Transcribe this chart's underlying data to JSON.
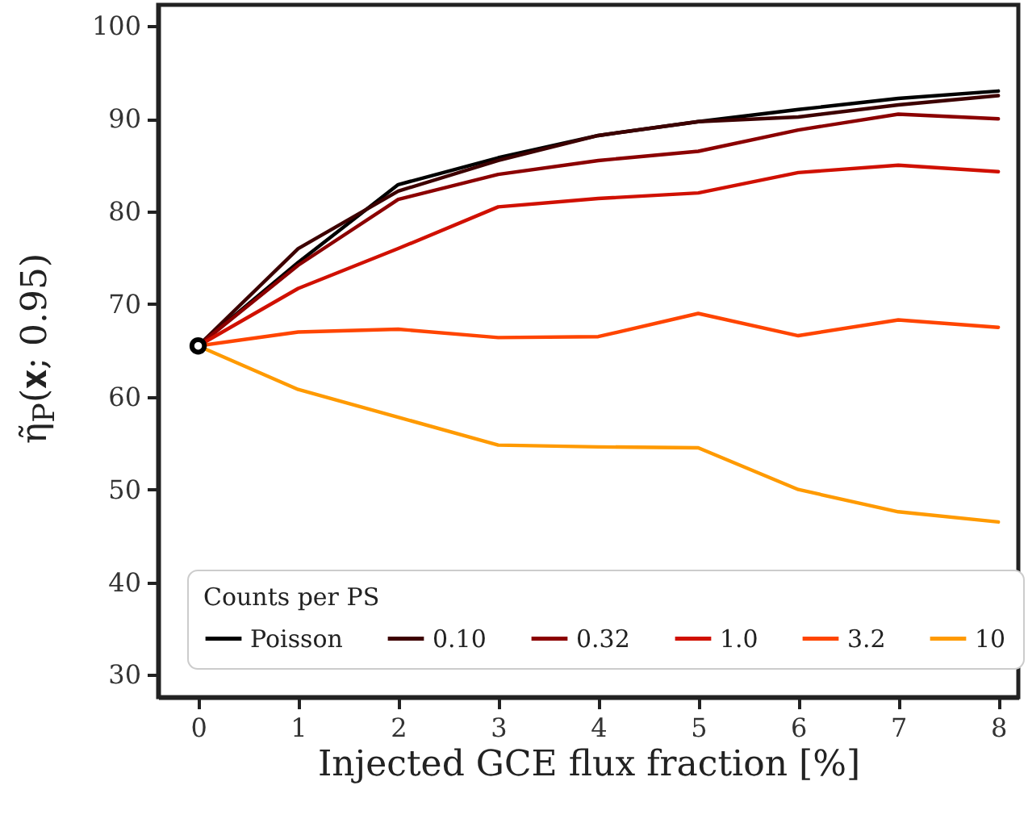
{
  "chart_data": {
    "type": "line",
    "xlabel": "Injected GCE flux fraction [%]",
    "ylabel": "η̃$_{P}$(𝐱; 0.95)",
    "legend_title": "Counts per PS",
    "legend": "bottom left",
    "grid": false,
    "marker": "none",
    "line_style": "solid",
    "x": [
      0,
      1,
      2,
      3,
      4,
      5,
      6,
      7,
      8
    ],
    "xlim": [
      -0.4,
      8.2
    ],
    "xticks": [
      0,
      1,
      2,
      3,
      4,
      5,
      6,
      7,
      8
    ],
    "ylim": [
      27.6,
      102.3
    ],
    "yticks": [
      30,
      40,
      50,
      60,
      70,
      80,
      90,
      100
    ],
    "series": [
      {
        "name": "Poisson",
        "color": "#000000",
        "values": [
          65.5,
          74.5,
          82.9,
          85.8,
          88.2,
          89.7,
          91.0,
          92.2,
          93.0
        ]
      },
      {
        "name": "0.10",
        "color": "#3d0000",
        "values": [
          65.5,
          76.0,
          82.2,
          85.5,
          88.2,
          89.7,
          90.2,
          91.5,
          92.5
        ]
      },
      {
        "name": "0.32",
        "color": "#8b0000",
        "values": [
          65.5,
          74.2,
          81.3,
          84.0,
          85.5,
          86.5,
          88.8,
          90.5,
          90.0
        ]
      },
      {
        "name": "1.0",
        "color": "#d01000",
        "values": [
          65.5,
          71.7,
          76.0,
          80.5,
          81.4,
          82.0,
          84.2,
          85.0,
          84.3
        ]
      },
      {
        "name": "3.2",
        "color": "#ff4500",
        "values": [
          65.5,
          67.0,
          67.3,
          66.4,
          66.5,
          69.0,
          66.6,
          68.3,
          67.5
        ]
      },
      {
        "name": "10",
        "color": "#ff9a00",
        "values": [
          65.5,
          60.8,
          57.8,
          54.8,
          54.6,
          54.5,
          50.0,
          47.6,
          46.5
        ]
      },
      {
        "type": "scatter",
        "color": "#000000",
        "marker": "circle",
        "x": [
          0
        ],
        "values": [
          65.5
        ]
      }
    ]
  }
}
